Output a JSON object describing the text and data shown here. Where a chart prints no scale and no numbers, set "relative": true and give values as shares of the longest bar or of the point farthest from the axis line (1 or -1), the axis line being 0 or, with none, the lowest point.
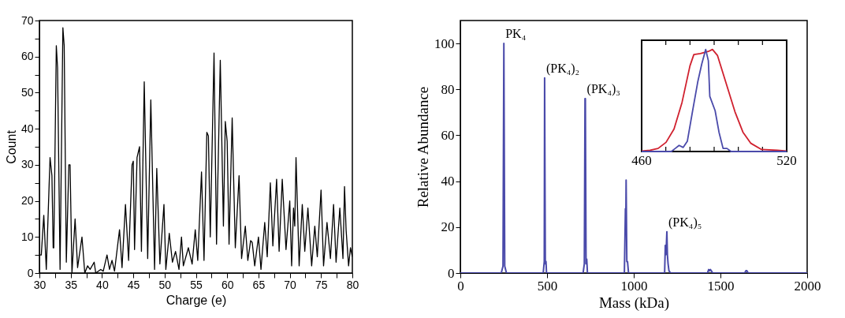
{
  "chart_data": [
    {
      "type": "line",
      "xlabel": "Charge (e)",
      "ylabel": "Count",
      "xlim": [
        30,
        80
      ],
      "ylim": [
        0,
        70
      ],
      "grid": false,
      "color": "#000000",
      "xticks": [
        30,
        {
          "value": 32.5,
          "label": null
        },
        35,
        {
          "value": 37.5,
          "label": null
        },
        40,
        {
          "value": 42.5,
          "label": null
        },
        45,
        {
          "value": 47.5,
          "label": null
        },
        50,
        {
          "value": 52.5,
          "label": null
        },
        55,
        {
          "value": 57.5,
          "label": null
        },
        60,
        {
          "value": 62.5,
          "label": null
        },
        65,
        {
          "value": 67.5,
          "label": null
        },
        70,
        {
          "value": 72.5,
          "label": null
        },
        75,
        {
          "value": 77.5,
          "label": null
        },
        80
      ],
      "yticks": [
        0,
        {
          "value": 5,
          "label": null
        },
        10,
        {
          "value": 15,
          "label": null
        },
        20,
        {
          "value": 25,
          "label": null
        },
        30,
        {
          "value": 35,
          "label": null
        },
        40,
        {
          "value": 45,
          "label": null
        },
        50,
        {
          "value": 55,
          "label": null
        },
        60,
        {
          "value": 65,
          "label": null
        },
        70
      ],
      "x": [
        30,
        30.3,
        30.7,
        31.1,
        31.7,
        32,
        32.2,
        32.3,
        32.7,
        32.9,
        33.3,
        33.75,
        33.96,
        34.3,
        34.7,
        34.9,
        35.2,
        35.7,
        36.1,
        36.8,
        37.25,
        37.7,
        38.1,
        38.75,
        39,
        39.8,
        40.2,
        40.8,
        41.2,
        41.6,
        42,
        42.8,
        43.2,
        43.75,
        44.25,
        44.8,
        45,
        45.2,
        45.6,
        46,
        46.3,
        46.75,
        47.3,
        47.8,
        48.4,
        48.75,
        49.25,
        49.9,
        50.2,
        50.75,
        51.25,
        51.75,
        52.3,
        52.7,
        53,
        53.8,
        54.4,
        54.9,
        55.3,
        55.9,
        56.3,
        56.75,
        57,
        57.3,
        57.9,
        58.3,
        58.9,
        59.4,
        59.7,
        60,
        60.3,
        60.8,
        61.3,
        61.9,
        62.3,
        62.9,
        63.3,
        63.75,
        64,
        64.4,
        65,
        65.4,
        66,
        66.4,
        66.9,
        67.3,
        67.9,
        68.3,
        68.8,
        69.4,
        70,
        70.3,
        70.6,
        70.8,
        71,
        71.5,
        72,
        72.4,
        72.9,
        73.5,
        74,
        74.4,
        75,
        75.4,
        75.95,
        76.5,
        77,
        77.4,
        78,
        78.5,
        78.75,
        79,
        79.4,
        79.7,
        80
      ],
      "values": [
        5,
        5,
        16,
        1,
        32,
        27,
        7,
        7,
        63,
        57,
        1,
        68,
        63,
        3,
        30,
        30,
        0,
        15,
        1.5,
        10,
        0,
        2,
        1,
        3,
        0,
        1,
        0.5,
        5,
        1,
        3.5,
        0.5,
        12,
        1.5,
        19,
        3.5,
        30,
        31,
        6.5,
        32,
        35,
        6,
        53,
        4,
        48,
        1,
        29,
        2.5,
        19,
        1,
        11,
        3,
        6,
        1,
        10,
        2,
        7,
        2.5,
        12,
        3.5,
        28,
        3.5,
        39,
        38,
        10,
        61,
        8,
        59,
        13,
        42,
        36.5,
        8,
        43,
        7,
        27,
        4,
        13,
        3.5,
        9,
        8.5,
        2,
        10,
        1,
        14,
        4.5,
        25,
        7.5,
        26,
        6,
        26,
        6.5,
        20,
        2,
        18,
        13,
        32,
        2,
        19,
        6,
        18,
        2,
        13,
        4.5,
        23,
        2,
        14,
        4,
        19,
        3,
        18,
        4,
        24,
        12,
        2,
        7,
        4.5
      ]
    },
    {
      "type": "line",
      "xlabel": "Mass (kDa)",
      "ylabel": "Relative Abundance",
      "xlim": [
        0,
        2000
      ],
      "ylim": [
        0,
        110
      ],
      "grid": false,
      "xticks": [
        0,
        500,
        1000,
        1500,
        2000
      ],
      "yticks": [
        0,
        20,
        40,
        60,
        80,
        100
      ],
      "series": [
        {
          "color": "#4a4aaa",
          "x": [
            0,
            236,
            246,
            251,
            256,
            266,
            470,
            478,
            484,
            486,
            490,
            494,
            497,
            502,
            700,
            708,
            715,
            719,
            721,
            725,
            729,
            733,
            740,
            938,
            946,
            952,
            954,
            956,
            960,
            964,
            970,
            980,
            1170,
            1178,
            1182,
            1185,
            1188,
            1191,
            1194,
            1198,
            1203,
            1212,
            1425,
            1432,
            1437,
            1442,
            1447,
            1455,
            1640,
            1647,
            1652,
            1660,
            2000
          ],
          "values": [
            0,
            0,
            3,
            100,
            3,
            0,
            0,
            0,
            5,
            85,
            4,
            5,
            0,
            0,
            0,
            0,
            4,
            76,
            76,
            4,
            6,
            0,
            0,
            0,
            0,
            28,
            20,
            40.5,
            5,
            5,
            0,
            0,
            0,
            0,
            12,
            8,
            12,
            18,
            8,
            4,
            1,
            0,
            0,
            1.5,
            1,
            1.5,
            1,
            0,
            0,
            1,
            1,
            0,
            0
          ]
        }
      ],
      "annotations": [
        {
          "text": "PK₄",
          "x": 251,
          "y": 100
        },
        {
          "text": "(PK₄)₂",
          "x": 486,
          "y": 85
        },
        {
          "text": "(PK₄)₃",
          "x": 721,
          "y": 76
        },
        {
          "text": "(PK₄)₅",
          "x": 1191,
          "y": 18
        }
      ]
    },
    {
      "type": "line",
      "relative": true,
      "xlim": [
        460,
        520
      ],
      "xticks": [
        460,
        {
          "value": 470,
          "label": null
        },
        {
          "value": 480,
          "label": null
        },
        {
          "value": 490,
          "label": null
        },
        {
          "value": 500,
          "label": null
        },
        {
          "value": 510,
          "label": null
        },
        520
      ],
      "series": [
        {
          "color": "#d0202e",
          "x": [
            460,
            463.5,
            466.8,
            470.1,
            473.4,
            476.7,
            480,
            481.6,
            484.3,
            487.6,
            489.3,
            491.4,
            494.8,
            498.6,
            501.9,
            505.2,
            509.6,
            516.1,
            520
          ],
          "values": [
            0.005,
            0.013,
            0.03,
            0.09,
            0.22,
            0.48,
            0.84,
            0.95,
            0.96,
            0.98,
            1,
            0.94,
            0.68,
            0.39,
            0.19,
            0.08,
            0.02,
            0.013,
            0.005
          ]
        },
        {
          "color": "#4a4aaa",
          "x": [
            460,
            472.3,
            473.9,
            475.5,
            477.2,
            478.9,
            481.1,
            483.2,
            484.9,
            486.5,
            487.6,
            488.2,
            490.4,
            492,
            493.7,
            495.3,
            497,
            501.9,
            520
          ],
          "values": [
            0,
            0,
            0.03,
            0.06,
            0.04,
            0.1,
            0.4,
            0.68,
            0.86,
            1,
            0.89,
            0.54,
            0.4,
            0.19,
            0.03,
            0.03,
            0,
            0,
            0
          ]
        }
      ]
    }
  ]
}
